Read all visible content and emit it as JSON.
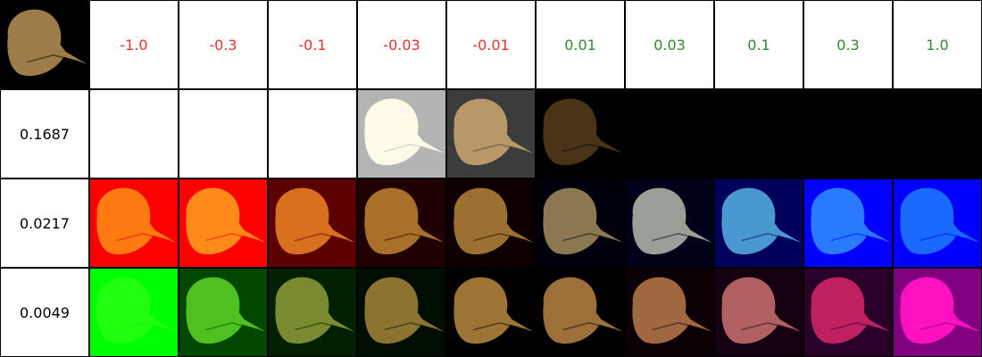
{
  "columns": [
    {
      "value": "-1.0",
      "color": "#e8312a"
    },
    {
      "value": "-0.3",
      "color": "#e8312a"
    },
    {
      "value": "-0.1",
      "color": "#e8312a"
    },
    {
      "value": "-0.03",
      "color": "#e8312a"
    },
    {
      "value": "-0.01",
      "color": "#e8312a"
    },
    {
      "value": "0.01",
      "color": "#2e8b2e"
    },
    {
      "value": "0.03",
      "color": "#2e8b2e"
    },
    {
      "value": "0.1",
      "color": "#2e8b2e"
    },
    {
      "value": "0.3",
      "color": "#2e8b2e"
    },
    {
      "value": "1.0",
      "color": "#2e8b2e"
    }
  ],
  "rows": [
    {
      "value": "0.1687",
      "cells": [
        {
          "bg": "#ffffff",
          "fg": null
        },
        {
          "bg": "#ffffff",
          "fg": null
        },
        {
          "bg": "#ffffff",
          "fg": null
        },
        {
          "bg": "#b4b4b4",
          "fg": "#fffbe8"
        },
        {
          "bg": "#3c3c3c",
          "fg": "#b89868"
        },
        {
          "bg": "#000000",
          "fg": "#4a3418"
        },
        {
          "bg": "#000000",
          "fg": null
        },
        {
          "bg": "#000000",
          "fg": null
        },
        {
          "bg": "#000000",
          "fg": null
        },
        {
          "bg": "#000000",
          "fg": null
        }
      ]
    },
    {
      "value": "0.0217",
      "cells": [
        {
          "bg": "#ff0000",
          "fg": "#ff7a10"
        },
        {
          "bg": "#ff0000",
          "fg": "#ff8a1a"
        },
        {
          "bg": "#5c0000",
          "fg": "#d87020"
        },
        {
          "bg": "#200000",
          "fg": "#a87028"
        },
        {
          "bg": "#0e0000",
          "fg": "#9c7030"
        },
        {
          "bg": "#00000c",
          "fg": "#8c7850"
        },
        {
          "bg": "#000018",
          "fg": "#98a098"
        },
        {
          "bg": "#00005c",
          "fg": "#4a98d0"
        },
        {
          "bg": "#0000ff",
          "fg": "#2a7aff"
        },
        {
          "bg": "#0000ff",
          "fg": "#1a6aff"
        }
      ]
    },
    {
      "value": "0.0049",
      "cells": [
        {
          "bg": "#00ff00",
          "fg": "#20ff10"
        },
        {
          "bg": "#004800",
          "fg": "#50c020"
        },
        {
          "bg": "#002000",
          "fg": "#7a8a30"
        },
        {
          "bg": "#000e00",
          "fg": "#8c7430"
        },
        {
          "bg": "#000000",
          "fg": "#9c7434"
        },
        {
          "bg": "#000000",
          "fg": "#9c7038"
        },
        {
          "bg": "#0a0006",
          "fg": "#a06840"
        },
        {
          "bg": "#140010",
          "fg": "#b06060"
        },
        {
          "bg": "#280028",
          "fg": "#c02060"
        },
        {
          "bg": "#800080",
          "fg": "#ff10c0"
        }
      ]
    }
  ],
  "reference": {
    "bg": "#000000",
    "fg": "#9c7c48"
  }
}
